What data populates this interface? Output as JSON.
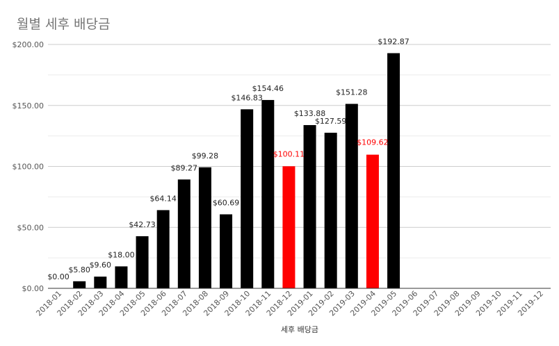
{
  "chart_data": {
    "type": "bar",
    "title": "월별 세후 배당금",
    "xlabel": "세후 배당금",
    "ylabel": "",
    "ylim": [
      0,
      200
    ],
    "yticks": [
      0,
      50,
      100,
      150,
      200
    ],
    "ytick_labels": [
      "$0.00",
      "$50.00",
      "$100.00",
      "$150.00",
      "$200.00"
    ],
    "grid": true,
    "legend": "none",
    "categories": [
      "2018-01",
      "2018-02",
      "2018-03",
      "2018-04",
      "2018-05",
      "2018-06",
      "2018-07",
      "2018-08",
      "2018-09",
      "2018-10",
      "2018-11",
      "2018-12",
      "2019-01",
      "2019-02",
      "2019-03",
      "2019-04",
      "2019-05",
      "2019-06",
      "2019-07",
      "2019-08",
      "2019-09",
      "2019-10",
      "2019-11",
      "2019-12"
    ],
    "values": [
      0.0,
      5.8,
      9.6,
      18.0,
      42.73,
      64.14,
      89.27,
      99.28,
      60.69,
      146.83,
      154.46,
      100.11,
      133.88,
      127.59,
      151.28,
      109.62,
      192.87,
      null,
      null,
      null,
      null,
      null,
      null,
      null
    ],
    "data_labels": [
      "$0.00",
      "$5.80",
      "$9.60",
      "$18.00",
      "$42.73",
      "$64.14",
      "$89.27",
      "$99.28",
      "$60.69",
      "$146.83",
      "$154.46",
      "$100.11",
      "$133.88",
      "$127.59",
      "$151.28",
      "$109.62",
      "$192.87",
      "",
      "",
      "",
      "",
      "",
      "",
      ""
    ],
    "colors": {
      "default": "#000000",
      "highlight": "#ff0000",
      "title": "#757575",
      "axis_text": "#555555",
      "data_label": "#222222",
      "gridline_major": "#cccccc",
      "gridline_minor": "#ebebeb",
      "baseline": "#333333"
    },
    "highlighted_categories": [
      "2018-12",
      "2019-04"
    ]
  }
}
